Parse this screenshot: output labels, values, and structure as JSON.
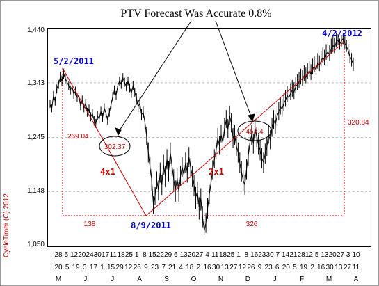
{
  "chart_data": {
    "type": "line",
    "title": "PTV Forecast Was Accurate 0.8%",
    "watermark": "CycleTimer (C) 2012",
    "y_ticks": [
      "1,440",
      "1,343",
      "1,245",
      "1,148",
      "1,050"
    ],
    "ylim": [
      1050,
      1440
    ],
    "grid": "dashed horizontal",
    "day_ticks": [
      "28",
      "5",
      "12",
      "20",
      "24",
      "30",
      "17",
      "11",
      "18",
      "25",
      "1",
      "8",
      "15",
      "22",
      "29",
      "6",
      "13",
      "20",
      "27",
      "4",
      "11",
      "18",
      "25",
      "1",
      "8",
      "16",
      "23",
      "30",
      "7",
      "14",
      "21",
      "28",
      "12",
      "5",
      "13",
      "20",
      "27",
      "3",
      "10"
    ],
    "day_ticks_row2": [
      "20",
      "5",
      "19",
      "3",
      "17",
      "1",
      "15",
      "29",
      "12",
      "26",
      "9",
      "23",
      "7",
      "21",
      "4",
      "18",
      "2",
      "16",
      "30",
      "13",
      "27",
      "12",
      "26",
      "9",
      "23",
      "6",
      "20",
      "5",
      "19",
      "2",
      "16",
      "30",
      "13",
      "27",
      "11"
    ],
    "month_ticks": [
      "M",
      "J",
      "J",
      "A",
      "S",
      "O",
      "N",
      "D",
      "J",
      "F",
      "M",
      "A"
    ],
    "series": [
      {
        "values": [
          1304,
          1296,
          1320,
          1310,
          1332,
          1340,
          1352,
          1346,
          1360,
          1350,
          1344,
          1338,
          1330,
          1336,
          1322,
          1328,
          1316,
          1320,
          1302,
          1312,
          1298,
          1306,
          1290,
          1296,
          1282,
          1288,
          1276,
          1270,
          1284,
          1278,
          1292,
          1280,
          1298,
          1288,
          1276,
          1290,
          1304,
          1318,
          1330,
          1320,
          1338,
          1346,
          1340,
          1352,
          1344,
          1336,
          1346,
          1334,
          1324,
          1338,
          1326,
          1316,
          1300,
          1306,
          1286,
          1290,
          1272,
          1248,
          1218,
          1192,
          1170,
          1124,
          1140,
          1168,
          1150,
          1182,
          1160,
          1196,
          1176,
          1206,
          1184,
          1218,
          1194,
          1170,
          1150,
          1172,
          1148,
          1176,
          1192,
          1178,
          1200,
          1182,
          1210,
          1190,
          1176,
          1160,
          1138,
          1148,
          1120,
          1136,
          1104,
          1078,
          1092,
          1118,
          1142,
          1164,
          1186,
          1206,
          1222,
          1244,
          1230,
          1250,
          1236,
          1262,
          1276,
          1260,
          1284,
          1270,
          1244,
          1250,
          1230,
          1218,
          1200,
          1184,
          1168,
          1160,
          1188,
          1212,
          1236,
          1250,
          1234,
          1262,
          1246,
          1232,
          1222,
          1208,
          1200,
          1216,
          1228,
          1250,
          1240,
          1262,
          1276,
          1268,
          1284,
          1290,
          1300,
          1296,
          1306,
          1312,
          1320,
          1316,
          1324,
          1330,
          1326,
          1336,
          1340,
          1344,
          1350,
          1348,
          1356,
          1352,
          1360,
          1364,
          1358,
          1368,
          1372,
          1366,
          1378,
          1374,
          1382,
          1388,
          1384,
          1394,
          1398,
          1392,
          1404,
          1410,
          1406,
          1416,
          1420,
          1412,
          1418,
          1422,
          1414,
          1408,
          1400,
          1390,
          1384,
          1376
        ],
        "lows": [
          1298,
          1290,
          1312,
          1302,
          1324,
          1332,
          1344,
          1338,
          1350,
          1342,
          1336,
          1330,
          1322,
          1328,
          1314,
          1320,
          1308,
          1312,
          1294,
          1304,
          1290,
          1298,
          1282,
          1288,
          1274,
          1280,
          1266,
          1262,
          1276,
          1270,
          1284,
          1272,
          1290,
          1280,
          1268,
          1282,
          1296,
          1310,
          1322,
          1312,
          1330,
          1338,
          1332,
          1344,
          1336,
          1328,
          1338,
          1326,
          1316,
          1330,
          1318,
          1306,
          1290,
          1296,
          1276,
          1280,
          1260,
          1232,
          1200,
          1176,
          1150,
          1108,
          1124,
          1152,
          1132,
          1164,
          1142,
          1178,
          1156,
          1188,
          1166,
          1198,
          1176,
          1150,
          1130,
          1154,
          1130,
          1158,
          1174,
          1160,
          1182,
          1164,
          1192,
          1172,
          1156,
          1140,
          1116,
          1126,
          1098,
          1114,
          1084,
          1072,
          1074,
          1100,
          1126,
          1148,
          1170,
          1190,
          1206,
          1228,
          1214,
          1236,
          1220,
          1246,
          1262,
          1244,
          1268,
          1254,
          1226,
          1232,
          1212,
          1200,
          1182,
          1166,
          1150,
          1142,
          1170,
          1194,
          1218,
          1232,
          1216,
          1244,
          1228,
          1214,
          1204,
          1190,
          1182,
          1198,
          1212,
          1234,
          1224,
          1246,
          1260,
          1252,
          1268,
          1276,
          1286,
          1282,
          1292,
          1300,
          1308,
          1302,
          1312,
          1318,
          1314,
          1324,
          1330,
          1334,
          1340,
          1338,
          1346,
          1342,
          1350,
          1354,
          1348,
          1358,
          1362,
          1356,
          1368,
          1364,
          1372,
          1378,
          1374,
          1384,
          1388,
          1382,
          1394,
          1400,
          1396,
          1406,
          1410,
          1402,
          1408,
          1412,
          1404,
          1398,
          1390,
          1378,
          1372,
          1364
        ],
        "highs": [
          1312,
          1304,
          1328,
          1318,
          1340,
          1348,
          1362,
          1356,
          1368,
          1358,
          1352,
          1346,
          1338,
          1344,
          1330,
          1336,
          1324,
          1328,
          1310,
          1320,
          1306,
          1314,
          1298,
          1304,
          1290,
          1296,
          1284,
          1278,
          1292,
          1286,
          1300,
          1288,
          1306,
          1296,
          1284,
          1298,
          1312,
          1326,
          1338,
          1328,
          1346,
          1354,
          1348,
          1360,
          1352,
          1344,
          1354,
          1342,
          1332,
          1346,
          1334,
          1324,
          1310,
          1316,
          1296,
          1300,
          1284,
          1264,
          1236,
          1210,
          1188,
          1140,
          1156,
          1184,
          1168,
          1200,
          1178,
          1214,
          1194,
          1224,
          1202,
          1236,
          1212,
          1188,
          1168,
          1190,
          1166,
          1194,
          1210,
          1196,
          1218,
          1200,
          1228,
          1208,
          1194,
          1178,
          1156,
          1166,
          1138,
          1154,
          1122,
          1096,
          1110,
          1136,
          1160,
          1182,
          1204,
          1224,
          1240,
          1262,
          1248,
          1268,
          1254,
          1280,
          1294,
          1278,
          1302,
          1288,
          1262,
          1268,
          1248,
          1236,
          1218,
          1202,
          1186,
          1178,
          1206,
          1230,
          1254,
          1268,
          1252,
          1280,
          1264,
          1250,
          1240,
          1226,
          1218,
          1234,
          1246,
          1268,
          1258,
          1280,
          1294,
          1286,
          1302,
          1308,
          1318,
          1314,
          1324,
          1330,
          1338,
          1334,
          1342,
          1348,
          1344,
          1354,
          1358,
          1362,
          1368,
          1366,
          1374,
          1370,
          1378,
          1382,
          1376,
          1386,
          1390,
          1384,
          1396,
          1392,
          1400,
          1406,
          1402,
          1412,
          1416,
          1410,
          1422,
          1428,
          1424,
          1432,
          1430,
          1422,
          1428,
          1432,
          1426,
          1420,
          1412,
          1402,
          1396,
          1388
        ]
      }
    ],
    "annotations": {
      "peak1_label": "5/2/2011",
      "low_label": "8/9/2011",
      "peak2_label": "4/2/2012",
      "left_height": "269.04",
      "forecast_drop": "302.37",
      "ratio_down": "4x1",
      "ratio_up": "2x1",
      "forecast_rise": "457.4",
      "days_down": "138",
      "days_up": "326",
      "right_height": "320.84"
    },
    "colors": {
      "price": "#000000",
      "trendline": "#cc0000",
      "annotation_red": "#cc0000",
      "date_blue": "#0000cc",
      "grid": "#bbbbbb"
    }
  }
}
